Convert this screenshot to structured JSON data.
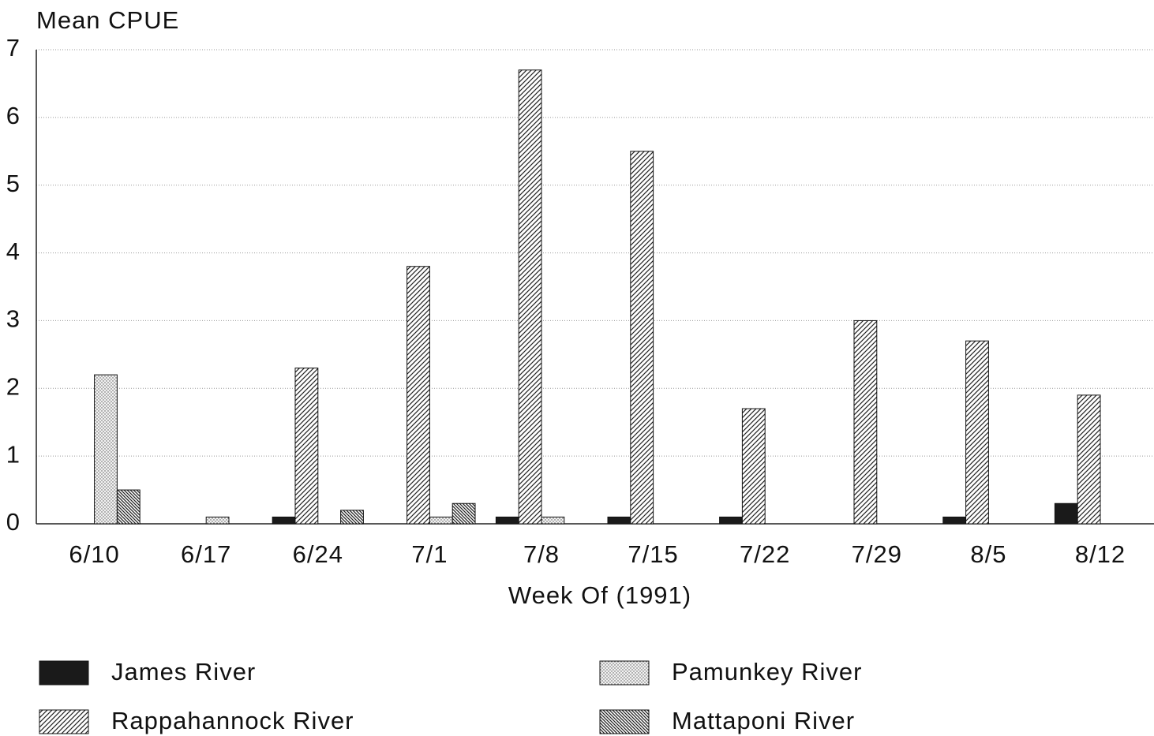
{
  "chart_data": {
    "type": "bar",
    "ylabel": "Mean CPUE",
    "xlabel": "Week Of (1991)",
    "categories": [
      "6/10",
      "6/17",
      "6/24",
      "7/1",
      "7/8",
      "7/15",
      "7/22",
      "7/29",
      "8/5",
      "8/12"
    ],
    "series": [
      {
        "name": "James River",
        "color": "#1a1a1a",
        "pattern": "solid",
        "values": [
          0,
          0,
          0.1,
          0,
          0.1,
          0.1,
          0.1,
          0,
          0.1,
          0.3
        ]
      },
      {
        "name": "Rappahannock River",
        "color": "#1a1a1a",
        "pattern": "hatch",
        "values": [
          0,
          0,
          2.3,
          3.8,
          6.7,
          5.5,
          1.7,
          3.0,
          2.7,
          1.9
        ]
      },
      {
        "name": "Pamunkey River",
        "color": "#1a1a1a",
        "pattern": "dots",
        "values": [
          2.2,
          0.1,
          0,
          0.1,
          0.1,
          0,
          0,
          0,
          0,
          0
        ]
      },
      {
        "name": "Mattaponi River",
        "color": "#1a1a1a",
        "pattern": "backhatch",
        "values": [
          0.5,
          0,
          0.2,
          0.3,
          0,
          0,
          0,
          0,
          0,
          0
        ]
      }
    ],
    "ylim": [
      0,
      7
    ],
    "yticks": [
      0,
      1,
      2,
      3,
      4,
      5,
      6,
      7
    ],
    "grid": true
  }
}
